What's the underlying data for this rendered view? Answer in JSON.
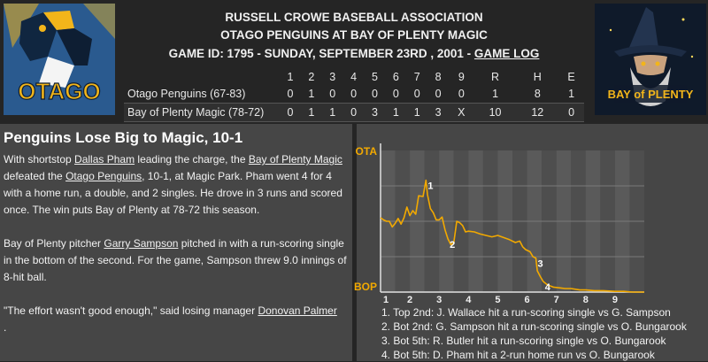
{
  "header": {
    "association": "RUSSELL CROWE BASEBALL ASSOCIATION",
    "matchup": "OTAGO PENGUINS AT BAY OF PLENTY MAGIC",
    "game_info": "GAME ID: 1795 - SUNDAY, SEPTEMBER 23RD , 2001 - ",
    "game_log_link": "GAME LOG"
  },
  "logos": {
    "away": {
      "text": "OTAGO",
      "colors": [
        "#2a5a8f",
        "#f2b51a"
      ]
    },
    "home": {
      "text": "BAY of PLENTY",
      "colors": [
        "#0f1a2a",
        "#f2b51a"
      ]
    }
  },
  "linescore": {
    "columns": [
      "1",
      "2",
      "3",
      "4",
      "5",
      "6",
      "7",
      "8",
      "9",
      "R",
      "H",
      "E"
    ],
    "rows": [
      {
        "team": "Otago Penguins (67-83)",
        "cells": [
          "0",
          "1",
          "0",
          "0",
          "0",
          "0",
          "0",
          "0",
          "0",
          "1",
          "8",
          "1"
        ]
      },
      {
        "team": "Bay of Plenty Magic (78-72)",
        "cells": [
          "0",
          "1",
          "1",
          "0",
          "3",
          "1",
          "1",
          "3",
          "X",
          "10",
          "12",
          "0"
        ]
      }
    ]
  },
  "story": {
    "headline": "Penguins Lose Big to Magic, 10-1",
    "p1": [
      "With shortstop ",
      "Dallas Pham",
      " leading the charge, the ",
      "Bay of Plenty Magic",
      " defeated the ",
      "Otago Penguins",
      ", 10-1, at Magic Park. Pham went 4 for 4 with a home run, a double, and 2 singles. He drove in 3 runs and scored once. The win puts Bay of Plenty at 78-72 this season."
    ],
    "p2": [
      "Bay of Plenty pitcher ",
      "Garry Sampson",
      " pitched in with a run-scoring single in the bottom of the second. For the game, Sampson threw 9.0 innings of 8-hit ball."
    ],
    "p3": [
      "\"The effort wasn't good enough,\" said losing manager ",
      "Donovan Palmer",
      "."
    ]
  },
  "chart_data": {
    "type": "line",
    "y_top_label": "OTA",
    "y_bottom_label": "BOP",
    "x_ticks": [
      "1",
      "2",
      "3",
      "4",
      "5",
      "6",
      "7",
      "8",
      "9"
    ],
    "color": "#f2a900",
    "ylim": [
      -1,
      1
    ],
    "series": [
      {
        "x": [
          0,
          0.1,
          0.2,
          0.3,
          0.4,
          0.5,
          0.6,
          0.7,
          0.8,
          0.9,
          1.0,
          1.1,
          1.2,
          1.3,
          1.45,
          1.55,
          1.6,
          1.7,
          1.8,
          1.9,
          2.0,
          2.1,
          2.2,
          2.3,
          2.4,
          2.5,
          2.6,
          2.7,
          2.8,
          2.9,
          3.0,
          3.2,
          3.4,
          3.6,
          3.8,
          4.0,
          4.2,
          4.4,
          4.6,
          4.75,
          4.85,
          4.95,
          5.1,
          5.2,
          5.3,
          5.35,
          5.45,
          5.55,
          5.7,
          5.9,
          6.1,
          6.3,
          6.5,
          6.8,
          7.0,
          7.3,
          7.6,
          8.0,
          8.3,
          8.6,
          9.0
        ],
        "y": [
          0.05,
          0.02,
          0.0,
          0.0,
          -0.08,
          -0.03,
          0.04,
          -0.04,
          0.05,
          0.2,
          0.08,
          0.15,
          0.1,
          0.36,
          0.35,
          0.58,
          0.38,
          0.18,
          0.12,
          0.02,
          0.02,
          0.06,
          -0.12,
          -0.25,
          -0.33,
          -0.3,
          0.0,
          -0.02,
          -0.06,
          -0.15,
          -0.14,
          -0.15,
          -0.18,
          -0.2,
          -0.22,
          -0.2,
          -0.23,
          -0.26,
          -0.3,
          -0.28,
          -0.36,
          -0.4,
          -0.43,
          -0.5,
          -0.52,
          -0.7,
          -0.78,
          -0.85,
          -0.9,
          -0.93,
          -0.94,
          -0.95,
          -0.95,
          -0.97,
          -0.97,
          -0.98,
          -0.98,
          -0.99,
          -0.99,
          -1.0,
          -1.0
        ]
      }
    ],
    "annotations": [
      {
        "label": "1",
        "x": 1.55,
        "y": 0.58
      },
      {
        "label": "2",
        "x": 2.3,
        "y": -0.25
      },
      {
        "label": "3",
        "x": 5.3,
        "y": -0.52
      },
      {
        "label": "4",
        "x": 5.55,
        "y": -0.85
      }
    ],
    "notes": [
      "1. Top 2nd: J. Wallace hit a run-scoring single vs G. Sampson",
      "2. Bot 2nd: G. Sampson hit a run-scoring single vs O. Bungarook",
      "3. Bot 5th: R. Butler hit a run-scoring single vs O. Bungarook",
      "4. Bot 5th: D. Pham hit a 2-run home run vs O. Bungarook"
    ]
  }
}
